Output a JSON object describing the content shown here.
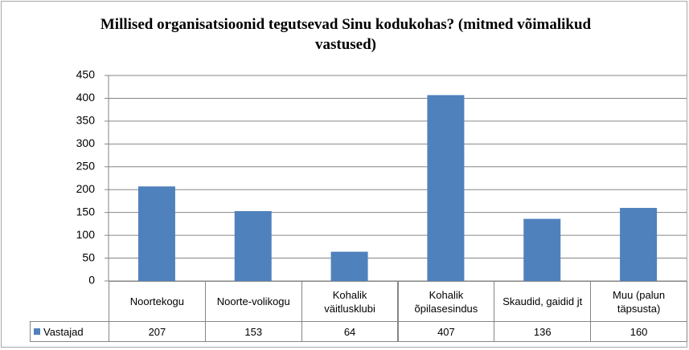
{
  "chart_data": {
    "type": "bar",
    "title": "Millised organisatsioonid tegutsevad Sinu kodukohas? (mitmed võimalikud vastused)",
    "categories": [
      "Noortekogu",
      "Noorte-volikogu",
      "Kohalik väitlusklubi",
      "Kohalik õpilasesindus",
      "Skaudid, gaidid jt",
      "Muu (palun täpsusta)"
    ],
    "series": [
      {
        "name": "Vastajad",
        "color": "#4f81bd",
        "values": [
          207,
          153,
          64,
          407,
          136,
          160
        ]
      }
    ],
    "ylim": [
      0,
      450
    ],
    "yticks": [
      0,
      50,
      100,
      150,
      200,
      250,
      300,
      350,
      400,
      450
    ],
    "grid": true
  }
}
